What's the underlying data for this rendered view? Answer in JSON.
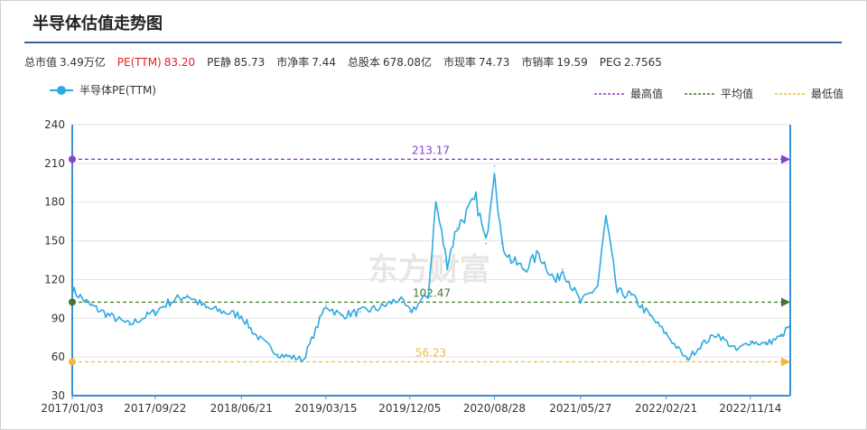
{
  "page": {
    "title": "半导体估值走势图"
  },
  "metrics": [
    {
      "label": "总市值",
      "value": "3.49万亿",
      "highlight": false
    },
    {
      "label": "PE(TTM)",
      "value": "83.20",
      "highlight": true
    },
    {
      "label": "PE静",
      "value": "85.73",
      "highlight": false
    },
    {
      "label": "市净率",
      "value": "7.44",
      "highlight": false
    },
    {
      "label": "总股本",
      "value": "678.08亿",
      "highlight": false
    },
    {
      "label": "市现率",
      "value": "74.73",
      "highlight": false
    },
    {
      "label": "市销率",
      "value": "19.59",
      "highlight": false
    },
    {
      "label": "PEG",
      "value": "2.7565",
      "highlight": false
    }
  ],
  "watermark": "东方财富",
  "chart_data": {
    "type": "line",
    "series": [
      {
        "name": "半导体PE(TTM)",
        "color": "#2ea9df",
        "x": [
          "2017/01/03",
          "2017/03/01",
          "2017/05/01",
          "2017/07/01",
          "2017/09/22",
          "2017/11/01",
          "2018/01/01",
          "2018/03/01",
          "2018/06/21",
          "2018/08/01",
          "2018/10/15",
          "2019/01/03",
          "2019/03/15",
          "2019/05/01",
          "2019/07/01",
          "2019/09/01",
          "2019/11/01",
          "2019/12/05",
          "2020/02/01",
          "2020/02/25",
          "2020/04/01",
          "2020/05/01",
          "2020/07/01",
          "2020/08/01",
          "2020/08/28",
          "2020/09/20",
          "2020/10/20",
          "2020/12/01",
          "2021/01/15",
          "2021/03/10",
          "2021/04/01",
          "2021/05/27",
          "2021/07/20",
          "2021/08/15",
          "2021/09/20",
          "2021/11/01",
          "2022/01/01",
          "2022/02/21",
          "2022/04/27",
          "2022/06/15",
          "2022/08/01",
          "2022/10/01",
          "2022/11/14",
          "2023/01/01",
          "2023/02/20",
          "2023/03/20"
        ],
        "values": [
          112,
          100,
          92,
          85,
          95,
          102,
          108,
          98,
          92,
          78,
          62,
          58,
          100,
          92,
          95,
          98,
          105,
          95,
          108,
          180,
          132,
          160,
          182,
          148,
          208,
          148,
          135,
          128,
          140,
          118,
          128,
          102,
          115,
          168,
          110,
          108,
          92,
          78,
          58,
          70,
          78,
          65,
          72,
          70,
          76,
          85
        ]
      }
    ],
    "reference_lines": [
      {
        "name": "最高值",
        "value": 213.17,
        "label": "213.17",
        "color": "#8a3fd1"
      },
      {
        "name": "平均值",
        "value": 102.47,
        "label": "102.47",
        "color": "#3f7a2a"
      },
      {
        "name": "最低值",
        "value": 56.23,
        "label": "56.23",
        "color": "#f6b738"
      }
    ],
    "xlabel": "",
    "ylabel": "",
    "ylim": [
      30,
      240
    ],
    "yticks": [
      30,
      60,
      90,
      120,
      150,
      180,
      210,
      240
    ],
    "xticks": [
      "2017/01/03",
      "2017/09/22",
      "2018/06/21",
      "2019/03/15",
      "2019/12/05",
      "2020/08/28",
      "2021/05/27",
      "2022/02/21",
      "2022/11/14"
    ],
    "xrange": [
      "2017/01/03",
      "2023/03/20"
    ],
    "grid": true,
    "legend": "top"
  }
}
